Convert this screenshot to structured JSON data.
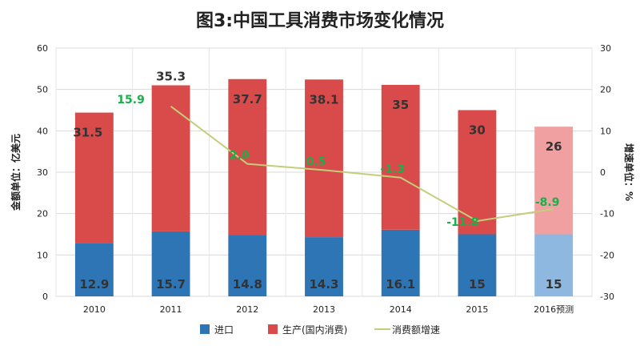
{
  "chart_data": {
    "type": "bar",
    "title": "图3:中国工具消费市场变化情况",
    "categories": [
      "2010",
      "2011",
      "2012",
      "2013",
      "2014",
      "2015",
      "2016预测"
    ],
    "series": [
      {
        "name": "进口",
        "kind": "stacked-bar",
        "axis": "left",
        "color": "#2e75b6",
        "values": [
          12.9,
          15.7,
          14.8,
          14.3,
          16.1,
          15,
          15
        ]
      },
      {
        "name": "生产(国内消费)",
        "kind": "stacked-bar",
        "axis": "left",
        "color": "#d94a4a",
        "values": [
          31.5,
          35.3,
          37.7,
          38.1,
          35,
          30,
          26
        ]
      },
      {
        "name": "消费额增速",
        "kind": "line",
        "axis": "right",
        "color": "#c4cd7a",
        "values": [
          null,
          15.9,
          2.0,
          0.5,
          -1.3,
          -11.8,
          -8.9
        ]
      }
    ],
    "forecast_index": 6,
    "forecast_colors": {
      "进口": "#8fb8e0",
      "生产(国内消费)": "#f0a0a0"
    },
    "ylabel": "金额单位：亿美元",
    "y2label": "增速单位：%",
    "ylim": [
      0,
      60
    ],
    "y2lim": [
      -30,
      30
    ],
    "yticks": [
      0,
      10,
      20,
      30,
      40,
      50,
      60
    ],
    "y2ticks": [
      -30,
      -20,
      -10,
      0,
      10,
      20,
      30
    ],
    "grid": true,
    "legend": "bottom",
    "data_labels": {
      "进口": [
        "12.9",
        "15.7",
        "14.8",
        "14.3",
        "16.1",
        "15",
        "15"
      ],
      "生产(国内消费)": [
        "31.5",
        "35.3",
        "37.7",
        "38.1",
        "35",
        "30",
        "26"
      ],
      "消费额增速": [
        "15.9",
        "2.0",
        "0.5",
        "-1.3",
        "-11.8",
        "-8.9"
      ]
    },
    "growth_label_color": "#18b04a"
  }
}
